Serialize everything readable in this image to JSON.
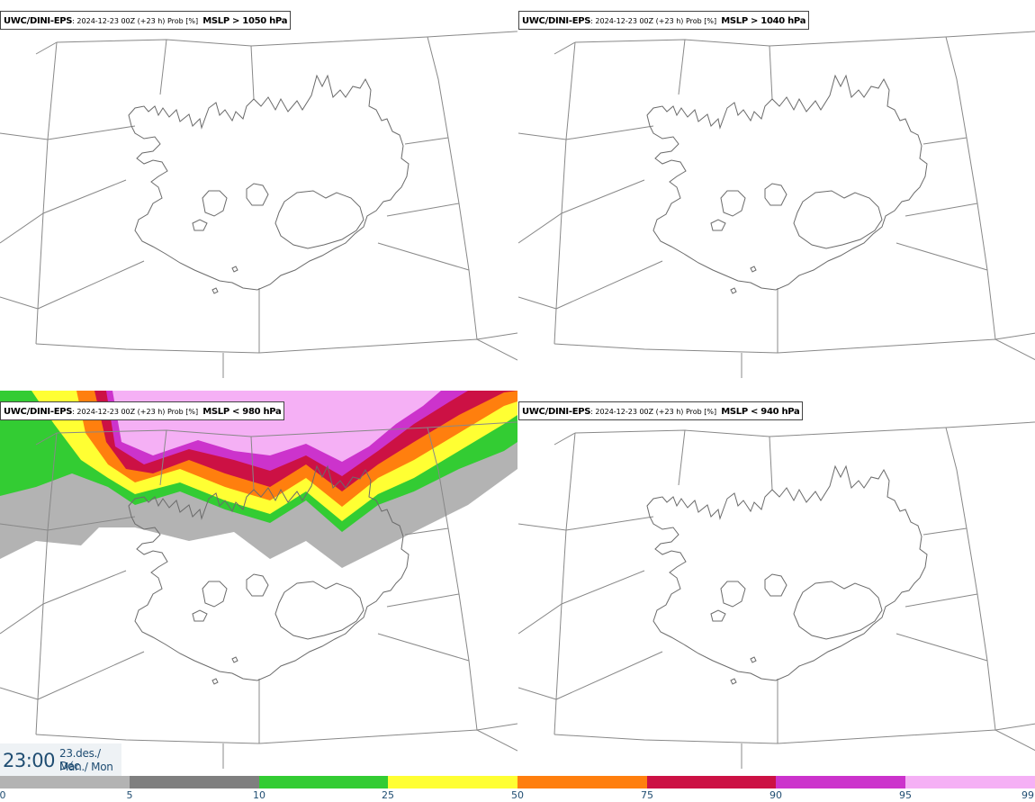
{
  "panels": [
    {
      "model": "UWC/DINI-EPS",
      "run": "2024-12-23 00Z (+23 h) Prob [%]",
      "field": "MSLP > 1050 hPa",
      "has_probability_field": false
    },
    {
      "model": "UWC/DINI-EPS",
      "run": "2024-12-23 00Z (+23 h) Prob [%]",
      "field": "MSLP > 1040 hPa",
      "has_probability_field": false
    },
    {
      "model": "UWC/DINI-EPS",
      "run": "2024-12-23 00Z (+23 h) Prob [%]",
      "field": "MSLP < 980 hPa",
      "has_probability_field": true
    },
    {
      "model": "UWC/DINI-EPS",
      "run": "2024-12-23 00Z (+23 h) Prob [%]",
      "field": "MSLP < 940 hPa",
      "has_probability_field": false
    }
  ],
  "valid_time": {
    "time": "23:00",
    "date_line1": "23.des./ Dec",
    "date_line2": "Mán./ Mon"
  },
  "colorbar": {
    "labels": [
      "0",
      "5",
      "10",
      "25",
      "50",
      "75",
      "90",
      "95",
      "99"
    ],
    "colors": [
      "#ffffff",
      "#b3b3b3",
      "#7f7f7f",
      "#33cc33",
      "#ffff33",
      "#ff7f0e",
      "#cc1144",
      "#cc33cc",
      "#f5b0f5"
    ]
  },
  "map": {
    "coastline_color": "#6b6b6b",
    "grid_color": "#888888"
  }
}
